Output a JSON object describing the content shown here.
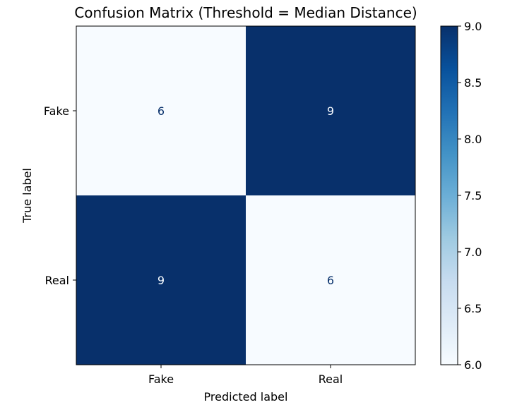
{
  "chart_data": {
    "type": "heatmap",
    "title": "Confusion Matrix (Threshold = Median Distance)",
    "xlabel": "Predicted label",
    "ylabel": "True label",
    "x_categories": [
      "Fake",
      "Real"
    ],
    "y_categories": [
      "Fake",
      "Real"
    ],
    "values": [
      [
        6,
        9
      ],
      [
        9,
        6
      ]
    ],
    "colormap": "Blues",
    "colorbar": {
      "min": 6.0,
      "max": 9.0,
      "ticks": [
        "6.0",
        "6.5",
        "7.0",
        "7.5",
        "8.0",
        "8.5",
        "9.0"
      ]
    },
    "colors": {
      "low": "#f7fbff",
      "high": "#08306b",
      "text_on_low": "#08306b",
      "text_on_high": "#f7fbff"
    },
    "grid": false
  }
}
